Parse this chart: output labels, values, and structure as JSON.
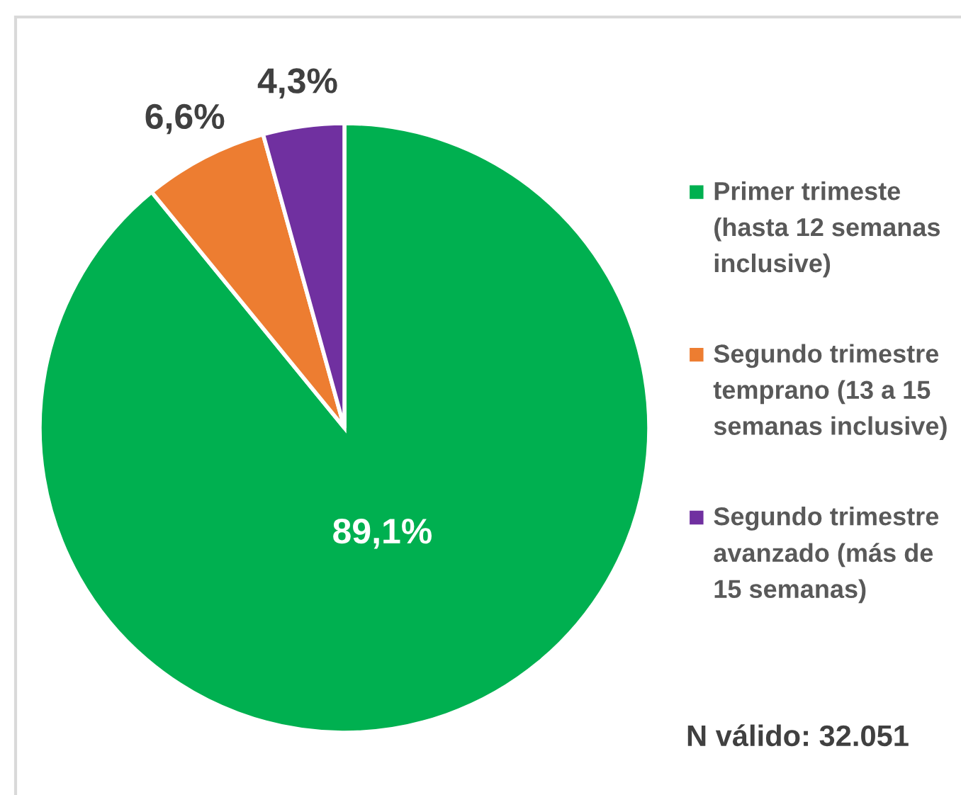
{
  "chart_data": {
    "type": "pie",
    "categories": [
      "Primer trimeste\n(hasta 12 semanas\ninclusive)",
      "Segundo trimestre\ntemprano (13 a 15\nsemanas inclusive)",
      "Segundo trimestre\navanzado (más de\n15 semanas)"
    ],
    "values": [
      89.1,
      6.6,
      4.3
    ],
    "colors": [
      "#00b050",
      "#ed7d31",
      "#7030a0"
    ],
    "value_labels": [
      "89,1%",
      "6,6%",
      "4,3%"
    ],
    "legend": "right",
    "annotations": [
      "N válido: 32.051"
    ]
  }
}
